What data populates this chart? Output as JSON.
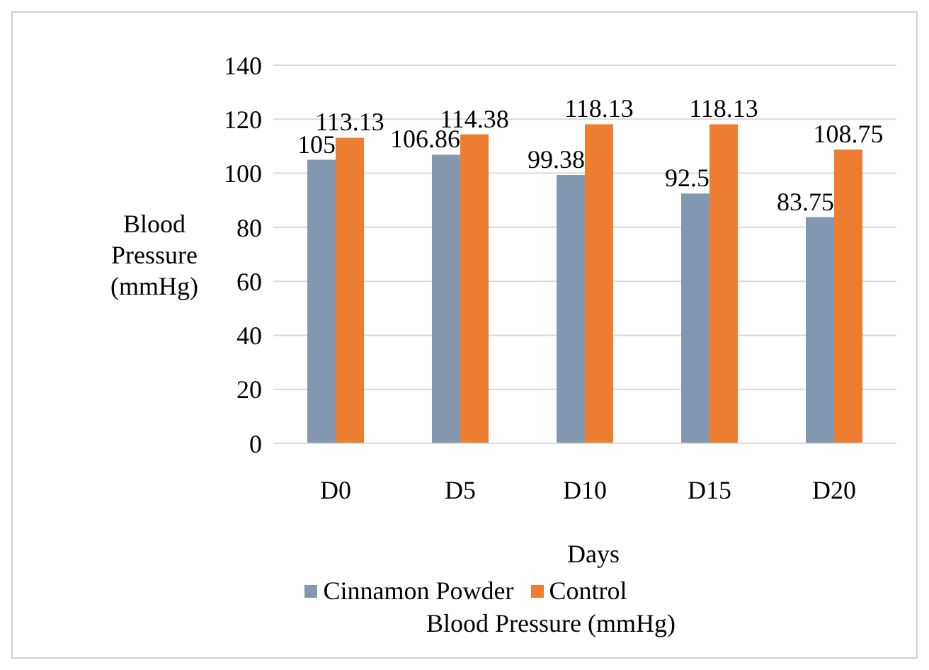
{
  "chart_data": {
    "type": "bar",
    "title": "Blood Pressure (mmHg)",
    "xlabel": "Days",
    "ylabel": "Blood Pressure (mmHg)",
    "categories": [
      "D0",
      "D5",
      "D10",
      "D15",
      "D20"
    ],
    "series": [
      {
        "name": "Cinnamon Powder",
        "color": "#8497b0",
        "values": [
          105,
          106.86,
          99.38,
          92.5,
          83.75
        ]
      },
      {
        "name": "Control",
        "color": "#ed7d31",
        "values": [
          113.13,
          114.38,
          118.13,
          118.13,
          108.75
        ]
      }
    ],
    "ylim": [
      0,
      140
    ],
    "yticks": [
      0,
      20,
      40,
      60,
      80,
      100,
      120,
      140
    ],
    "grid": "y",
    "legend": "bottom",
    "data_labels": true
  }
}
